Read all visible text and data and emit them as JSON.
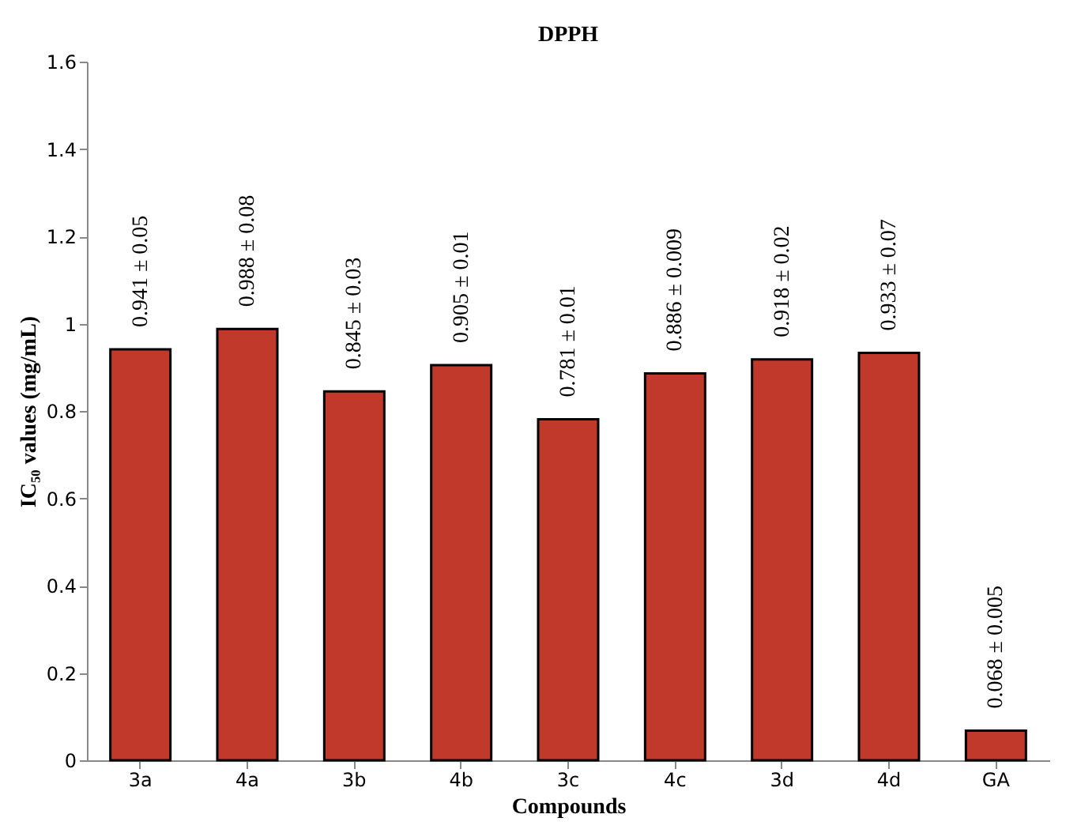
{
  "chart_data": {
    "type": "bar",
    "title": "DPPH",
    "xlabel": "Compounds",
    "ylabel": "IC₅₀ values (mg/mL)",
    "categories": [
      "3a",
      "4a",
      "3b",
      "4b",
      "3c",
      "4c",
      "3d",
      "4d",
      "GA"
    ],
    "values": [
      0.941,
      0.988,
      0.845,
      0.905,
      0.781,
      0.886,
      0.918,
      0.933,
      0.068
    ],
    "value_labels": [
      "0.941 ± 0.05",
      "0.988 ± 0.08",
      "0.845 ± 0.03",
      "0.905 ± 0.01",
      "0.781 ± 0.01",
      "0.886 ± 0.009",
      "0.918 ± 0.02",
      "0.933 ± 0.07",
      "0.068 ± 0.005"
    ],
    "color": "#c0392b",
    "ylim": [
      0,
      1.6
    ],
    "yticks": [
      0,
      0.2,
      0.4,
      0.6,
      0.8,
      1,
      1.2,
      1.4,
      1.6
    ]
  }
}
